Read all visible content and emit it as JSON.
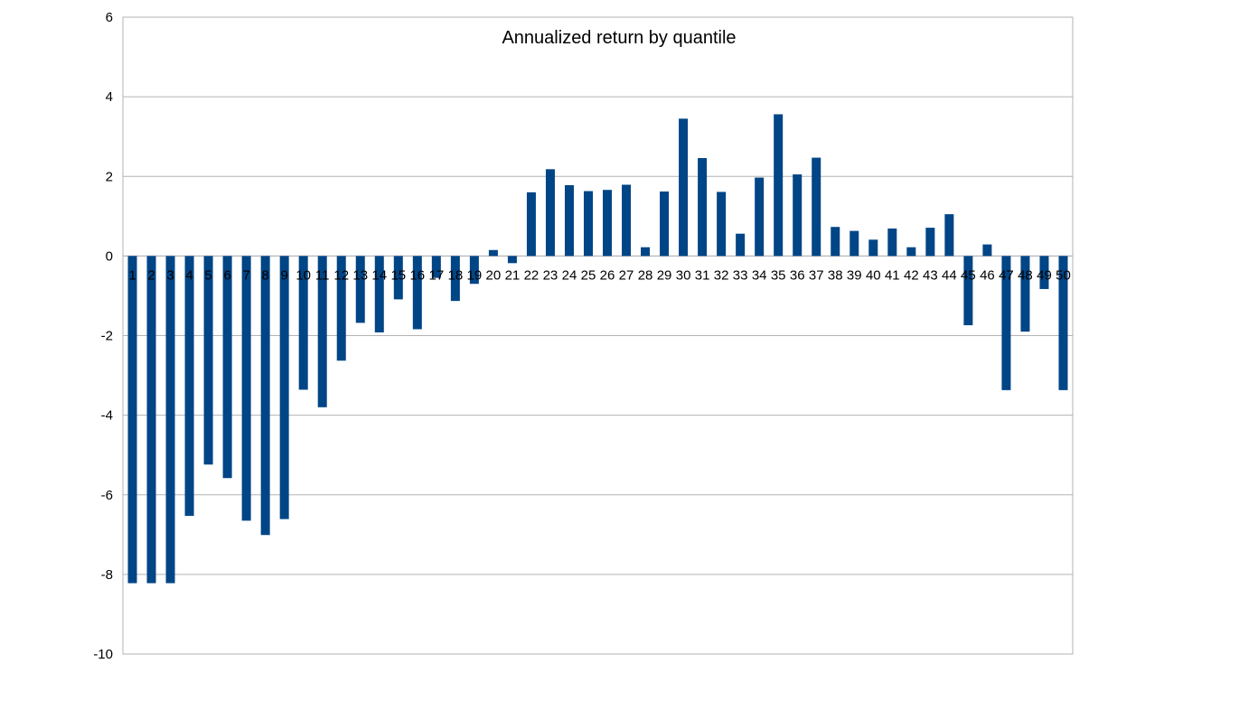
{
  "chart_data": {
    "type": "bar",
    "title": "Annualized return by quantile",
    "xlabel": "",
    "ylabel": "",
    "ylim": [
      -10,
      6
    ],
    "yticks": [
      6,
      4,
      2,
      0,
      -2,
      -4,
      -6,
      -8,
      -10
    ],
    "grid": true,
    "legend": "none",
    "bar_color": "#004586",
    "grid_color": "#b3b3b3",
    "categories": [
      "1",
      "2",
      "3",
      "4",
      "5",
      "6",
      "7",
      "8",
      "9",
      "10",
      "11",
      "12",
      "13",
      "14",
      "15",
      "16",
      "17",
      "18",
      "19",
      "20",
      "21",
      "22",
      "23",
      "24",
      "25",
      "26",
      "27",
      "28",
      "29",
      "30",
      "31",
      "32",
      "33",
      "34",
      "35",
      "36",
      "37",
      "38",
      "39",
      "40",
      "41",
      "42",
      "43",
      "44",
      "45",
      "46",
      "47",
      "48",
      "49",
      "50"
    ],
    "values": [
      -8.22,
      -8.22,
      -8.22,
      -6.53,
      -5.24,
      -5.58,
      -6.65,
      -7.01,
      -6.61,
      -3.36,
      -3.8,
      -2.63,
      -1.68,
      -1.92,
      -1.09,
      -1.84,
      -0.55,
      -1.13,
      -0.7,
      0.15,
      -0.18,
      1.6,
      2.18,
      1.78,
      1.63,
      1.66,
      1.79,
      0.22,
      1.62,
      3.45,
      2.46,
      1.61,
      0.56,
      1.97,
      3.56,
      2.05,
      2.47,
      0.73,
      0.63,
      0.41,
      0.69,
      0.22,
      0.71,
      1.05,
      -1.74,
      0.29,
      -3.37,
      -1.9,
      -0.83,
      -3.37
    ]
  }
}
